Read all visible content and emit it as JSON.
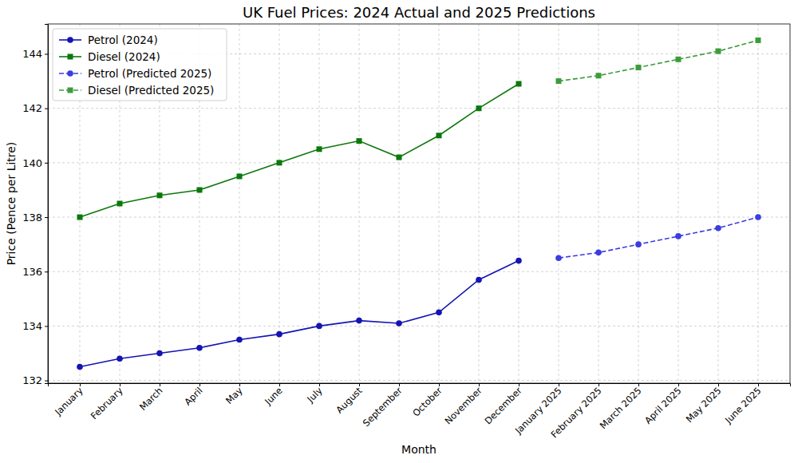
{
  "chart_data": {
    "type": "line",
    "title": "UK Fuel Prices: 2024 Actual and 2025 Predictions",
    "xlabel": "Month",
    "ylabel": "Price (Pence per Litre)",
    "categories": [
      "January",
      "February",
      "March",
      "April",
      "May",
      "June",
      "July",
      "August",
      "September",
      "October",
      "November",
      "December",
      "January 2025",
      "February 2025",
      "March 2025",
      "April 2025",
      "May 2025",
      "June 2025"
    ],
    "series": [
      {
        "name": "Petrol (2024)",
        "color": "#1414b4",
        "marker": "circle",
        "line_style": "solid",
        "values": [
          132.5,
          132.8,
          133.0,
          133.2,
          133.5,
          133.7,
          134.0,
          134.2,
          134.1,
          134.5,
          135.7,
          136.4,
          null,
          null,
          null,
          null,
          null,
          null
        ]
      },
      {
        "name": "Diesel (2024)",
        "color": "#0b780b",
        "marker": "square",
        "line_style": "solid",
        "values": [
          138.0,
          138.5,
          138.8,
          139.0,
          139.5,
          140.0,
          140.5,
          140.8,
          140.2,
          141.0,
          142.0,
          142.9,
          null,
          null,
          null,
          null,
          null,
          null
        ]
      },
      {
        "name": "Petrol (Predicted 2025)",
        "color": "#3c3ce0",
        "marker": "circle",
        "line_style": "dashed",
        "values": [
          null,
          null,
          null,
          null,
          null,
          null,
          null,
          null,
          null,
          null,
          null,
          null,
          136.5,
          136.7,
          137.0,
          137.3,
          137.6,
          138.0
        ]
      },
      {
        "name": "Diesel (Predicted 2025)",
        "color": "#3c9c3c",
        "marker": "square",
        "line_style": "dashed",
        "values": [
          null,
          null,
          null,
          null,
          null,
          null,
          null,
          null,
          null,
          null,
          null,
          null,
          143.0,
          143.2,
          143.5,
          143.8,
          144.1,
          144.5
        ]
      }
    ],
    "ylim": [
      131.9,
      145.1
    ],
    "yticks": [
      132,
      134,
      136,
      138,
      140,
      142,
      144
    ],
    "grid": true,
    "legend": "upper left"
  }
}
